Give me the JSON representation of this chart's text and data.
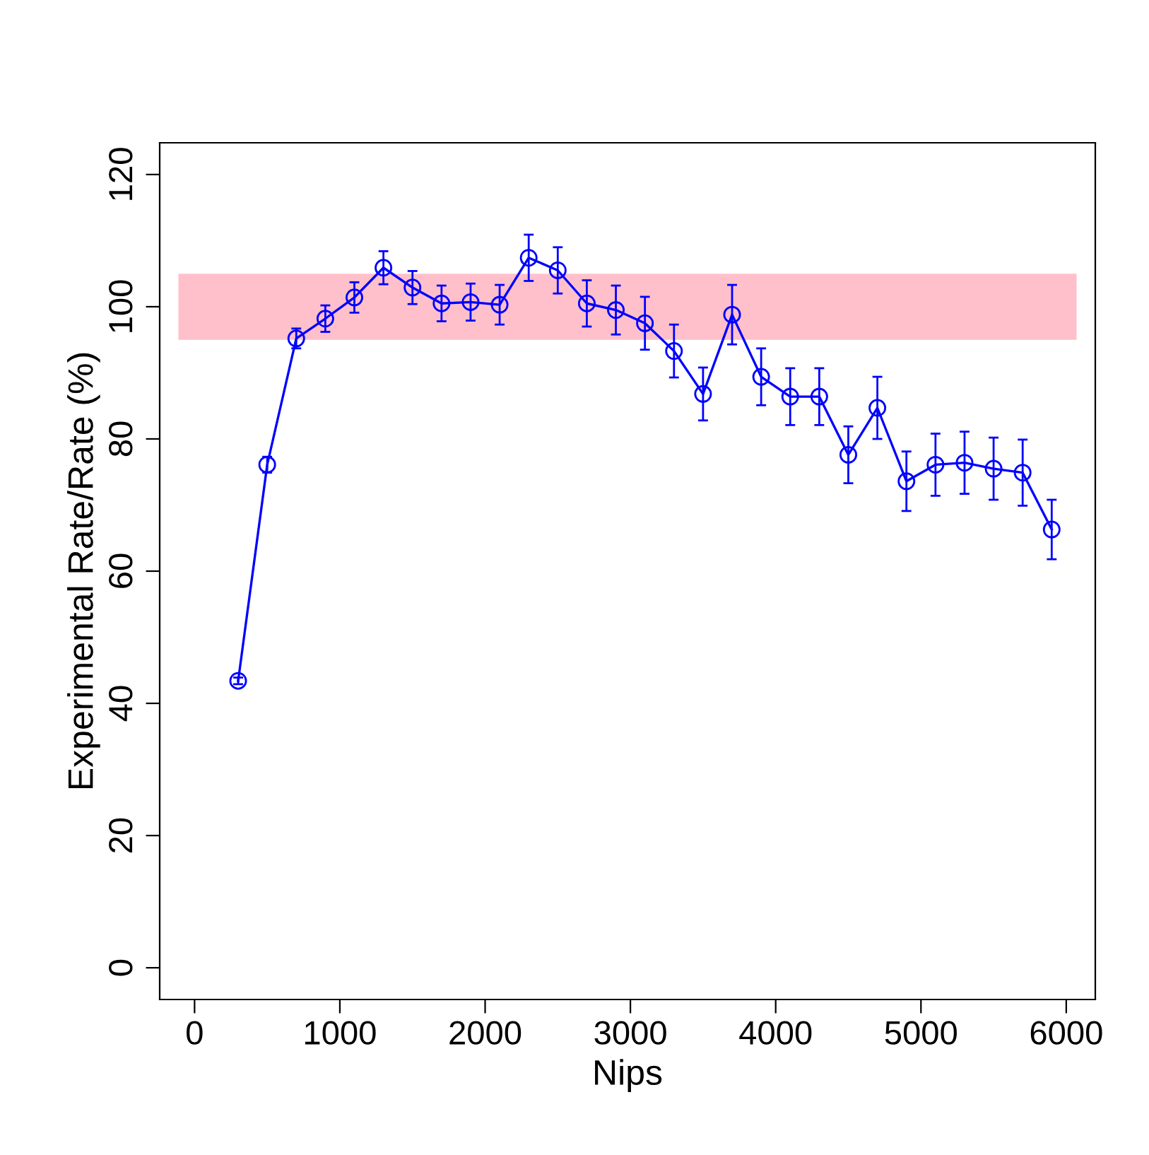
{
  "chart_data": {
    "type": "line",
    "xlabel": "Nips",
    "ylabel": "Experimental Rate/Rate (%)",
    "x": [
      300,
      500,
      700,
      900,
      1100,
      1300,
      1500,
      1700,
      1900,
      2100,
      2300,
      2500,
      2700,
      2900,
      3100,
      3300,
      3500,
      3700,
      3900,
      4100,
      4300,
      4500,
      4700,
      4900,
      5100,
      5300,
      5500,
      5700,
      5900
    ],
    "series": [
      {
        "color": "#0000ff",
        "values": [
          43.4,
          76.1,
          95.2,
          98.2,
          101.4,
          105.9,
          102.9,
          100.5,
          100.7,
          100.3,
          107.4,
          105.5,
          100.5,
          99.5,
          97.5,
          93.3,
          86.8,
          98.8,
          89.4,
          86.4,
          86.4,
          77.6,
          84.7,
          73.6,
          76.1,
          76.4,
          75.5,
          74.9,
          66.3
        ],
        "errors": [
          0.5,
          1.2,
          1.5,
          2,
          2.3,
          2.5,
          2.5,
          2.7,
          2.8,
          3,
          3.5,
          3.5,
          3.5,
          3.7,
          4,
          4,
          4,
          4.5,
          4.3,
          4.3,
          4.3,
          4.3,
          4.7,
          4.5,
          4.7,
          4.7,
          4.7,
          5,
          4.5
        ]
      }
    ],
    "bands": [
      {
        "axis": "y",
        "from": 95,
        "to": 105,
        "color": "#ffc0cb"
      }
    ],
    "xlim": [
      -240,
      6200
    ],
    "ylim": [
      -4.8,
      124.8
    ],
    "xticks": [
      0,
      1000,
      2000,
      3000,
      4000,
      5000,
      6000
    ],
    "yticks": [
      0,
      20,
      40,
      60,
      80,
      100,
      120
    ],
    "marker": "circle",
    "line_style": "solid",
    "grid": false,
    "legend": false
  }
}
